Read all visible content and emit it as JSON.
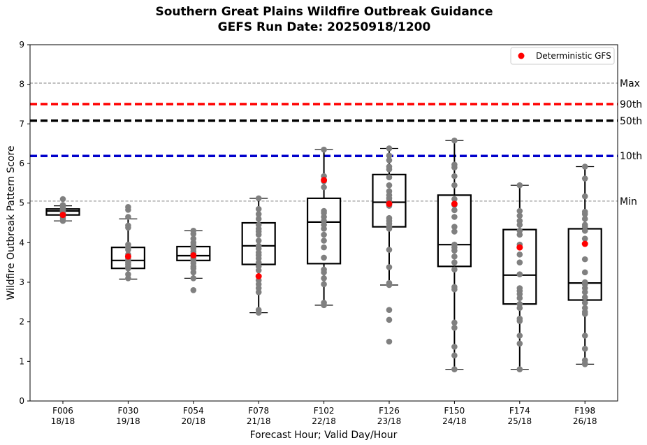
{
  "chart_data": {
    "type": "box",
    "title": "Southern Great Plains Wildfire Outbreak Guidance",
    "subtitle": "GEFS Run Date: 20250918/1200",
    "xlabel": "Forecast Hour; Valid Day/Hour",
    "ylabel": "Wildfire Outbreak Pattern Score",
    "ylim": [
      0,
      9
    ],
    "yticks": [
      "0",
      "1",
      "2",
      "3",
      "4",
      "5",
      "6",
      "7",
      "8",
      "9"
    ],
    "legend": {
      "position": "top-right",
      "entries": [
        "Deterministic GFS"
      ]
    },
    "reference_lines": [
      {
        "label": "Max",
        "value": 8.03,
        "style": "dashed-thin",
        "color": "#808080"
      },
      {
        "label": "90th",
        "value": 7.5,
        "style": "dashed-thick",
        "color": "#ff0000"
      },
      {
        "label": "50th",
        "value": 7.08,
        "style": "dashed-thick",
        "color": "#000000"
      },
      {
        "label": "10th",
        "value": 6.19,
        "style": "dashed-thick",
        "color": "#0000cc"
      },
      {
        "label": "Min",
        "value": 5.05,
        "style": "dashed-thin",
        "color": "#808080"
      }
    ],
    "colors": {
      "member": "#808080",
      "deterministic": "#ff0000"
    },
    "groups": [
      {
        "hour": "F006",
        "valid": "18/18",
        "whisker_low": 4.55,
        "q1": 4.7,
        "median": 4.8,
        "q3": 4.85,
        "whisker_high": 4.93,
        "deterministic": 4.7,
        "members": [
          5.1,
          4.95,
          4.9,
          4.85,
          4.82,
          4.8,
          4.78,
          4.75,
          4.72,
          4.7,
          4.65,
          4.6,
          4.55
        ]
      },
      {
        "hour": "F030",
        "valid": "19/18",
        "whisker_low": 3.08,
        "q1": 3.35,
        "median": 3.55,
        "q3": 3.88,
        "whisker_high": 4.6,
        "deterministic": 3.65,
        "members": [
          4.9,
          4.83,
          4.65,
          4.43,
          4.38,
          3.95,
          3.88,
          3.82,
          3.7,
          3.6,
          3.55,
          3.5,
          3.45,
          3.4,
          3.35,
          3.2,
          3.1
        ]
      },
      {
        "hour": "F054",
        "valid": "20/18",
        "whisker_low": 3.1,
        "q1": 3.55,
        "median": 3.67,
        "q3": 3.9,
        "whisker_high": 4.3,
        "deterministic": 3.68,
        "members": [
          4.3,
          4.22,
          4.1,
          4.0,
          3.93,
          3.85,
          3.78,
          3.72,
          3.65,
          3.6,
          3.55,
          3.48,
          3.4,
          3.35,
          3.25,
          3.1,
          2.8
        ]
      },
      {
        "hour": "F078",
        "valid": "21/18",
        "whisker_low": 2.23,
        "q1": 3.45,
        "median": 3.92,
        "q3": 4.5,
        "whisker_high": 5.12,
        "deterministic": 3.15,
        "members": [
          5.12,
          4.85,
          4.72,
          4.6,
          4.45,
          4.35,
          4.28,
          4.2,
          4.05,
          3.92,
          3.85,
          3.75,
          3.68,
          3.6,
          3.5,
          3.4,
          3.3,
          3.05,
          2.95,
          2.85,
          2.75,
          2.3,
          2.23
        ]
      },
      {
        "hour": "F102",
        "valid": "22/18",
        "whisker_low": 2.42,
        "q1": 3.47,
        "median": 4.52,
        "q3": 5.12,
        "whisker_high": 6.35,
        "deterministic": 5.58,
        "members": [
          6.35,
          5.68,
          5.55,
          5.4,
          4.8,
          4.75,
          4.65,
          4.55,
          4.45,
          4.35,
          4.2,
          4.05,
          3.88,
          3.62,
          3.32,
          3.25,
          3.1,
          2.95,
          2.48,
          2.42
        ]
      },
      {
        "hour": "F126",
        "valid": "23/18",
        "whisker_low": 2.93,
        "q1": 4.4,
        "median": 5.02,
        "q3": 5.72,
        "whisker_high": 6.38,
        "deterministic": 4.98,
        "members": [
          6.38,
          6.2,
          6.08,
          5.92,
          5.85,
          5.65,
          5.45,
          5.3,
          5.2,
          5.12,
          5.05,
          4.93,
          4.62,
          4.55,
          4.48,
          4.4,
          4.35,
          3.82,
          3.38,
          2.98,
          2.93,
          2.3,
          2.05,
          1.5
        ]
      },
      {
        "hour": "F150",
        "valid": "24/18",
        "whisker_low": 0.8,
        "q1": 3.4,
        "median": 3.95,
        "q3": 5.2,
        "whisker_high": 6.58,
        "deterministic": 4.98,
        "members": [
          6.58,
          5.97,
          5.9,
          5.68,
          5.45,
          5.1,
          4.95,
          4.82,
          4.65,
          4.4,
          4.28,
          3.95,
          3.88,
          3.8,
          3.65,
          3.5,
          3.32,
          2.88,
          2.82,
          1.98,
          1.85,
          1.37,
          1.15,
          0.8
        ]
      },
      {
        "hour": "F174",
        "valid": "25/18",
        "whisker_low": 0.8,
        "q1": 2.45,
        "median": 3.18,
        "q3": 4.33,
        "whisker_high": 5.45,
        "deterministic": 3.88,
        "members": [
          5.45,
          4.8,
          4.68,
          4.55,
          4.45,
          4.3,
          4.2,
          3.95,
          3.7,
          3.5,
          3.2,
          2.85,
          2.78,
          2.7,
          2.6,
          2.45,
          2.35,
          2.08,
          2.02,
          1.65,
          1.45,
          0.8
        ]
      },
      {
        "hour": "F198",
        "valid": "26/18",
        "whisker_low": 0.93,
        "q1": 2.55,
        "median": 2.98,
        "q3": 4.35,
        "whisker_high": 5.92,
        "deterministic": 3.97,
        "members": [
          5.92,
          5.62,
          5.17,
          4.78,
          4.72,
          4.6,
          4.45,
          4.4,
          4.3,
          4.1,
          3.58,
          3.25,
          3.0,
          2.95,
          2.85,
          2.75,
          2.62,
          2.48,
          2.35,
          2.25,
          2.2,
          1.65,
          1.32,
          1.03,
          0.95,
          0.93
        ]
      }
    ]
  }
}
